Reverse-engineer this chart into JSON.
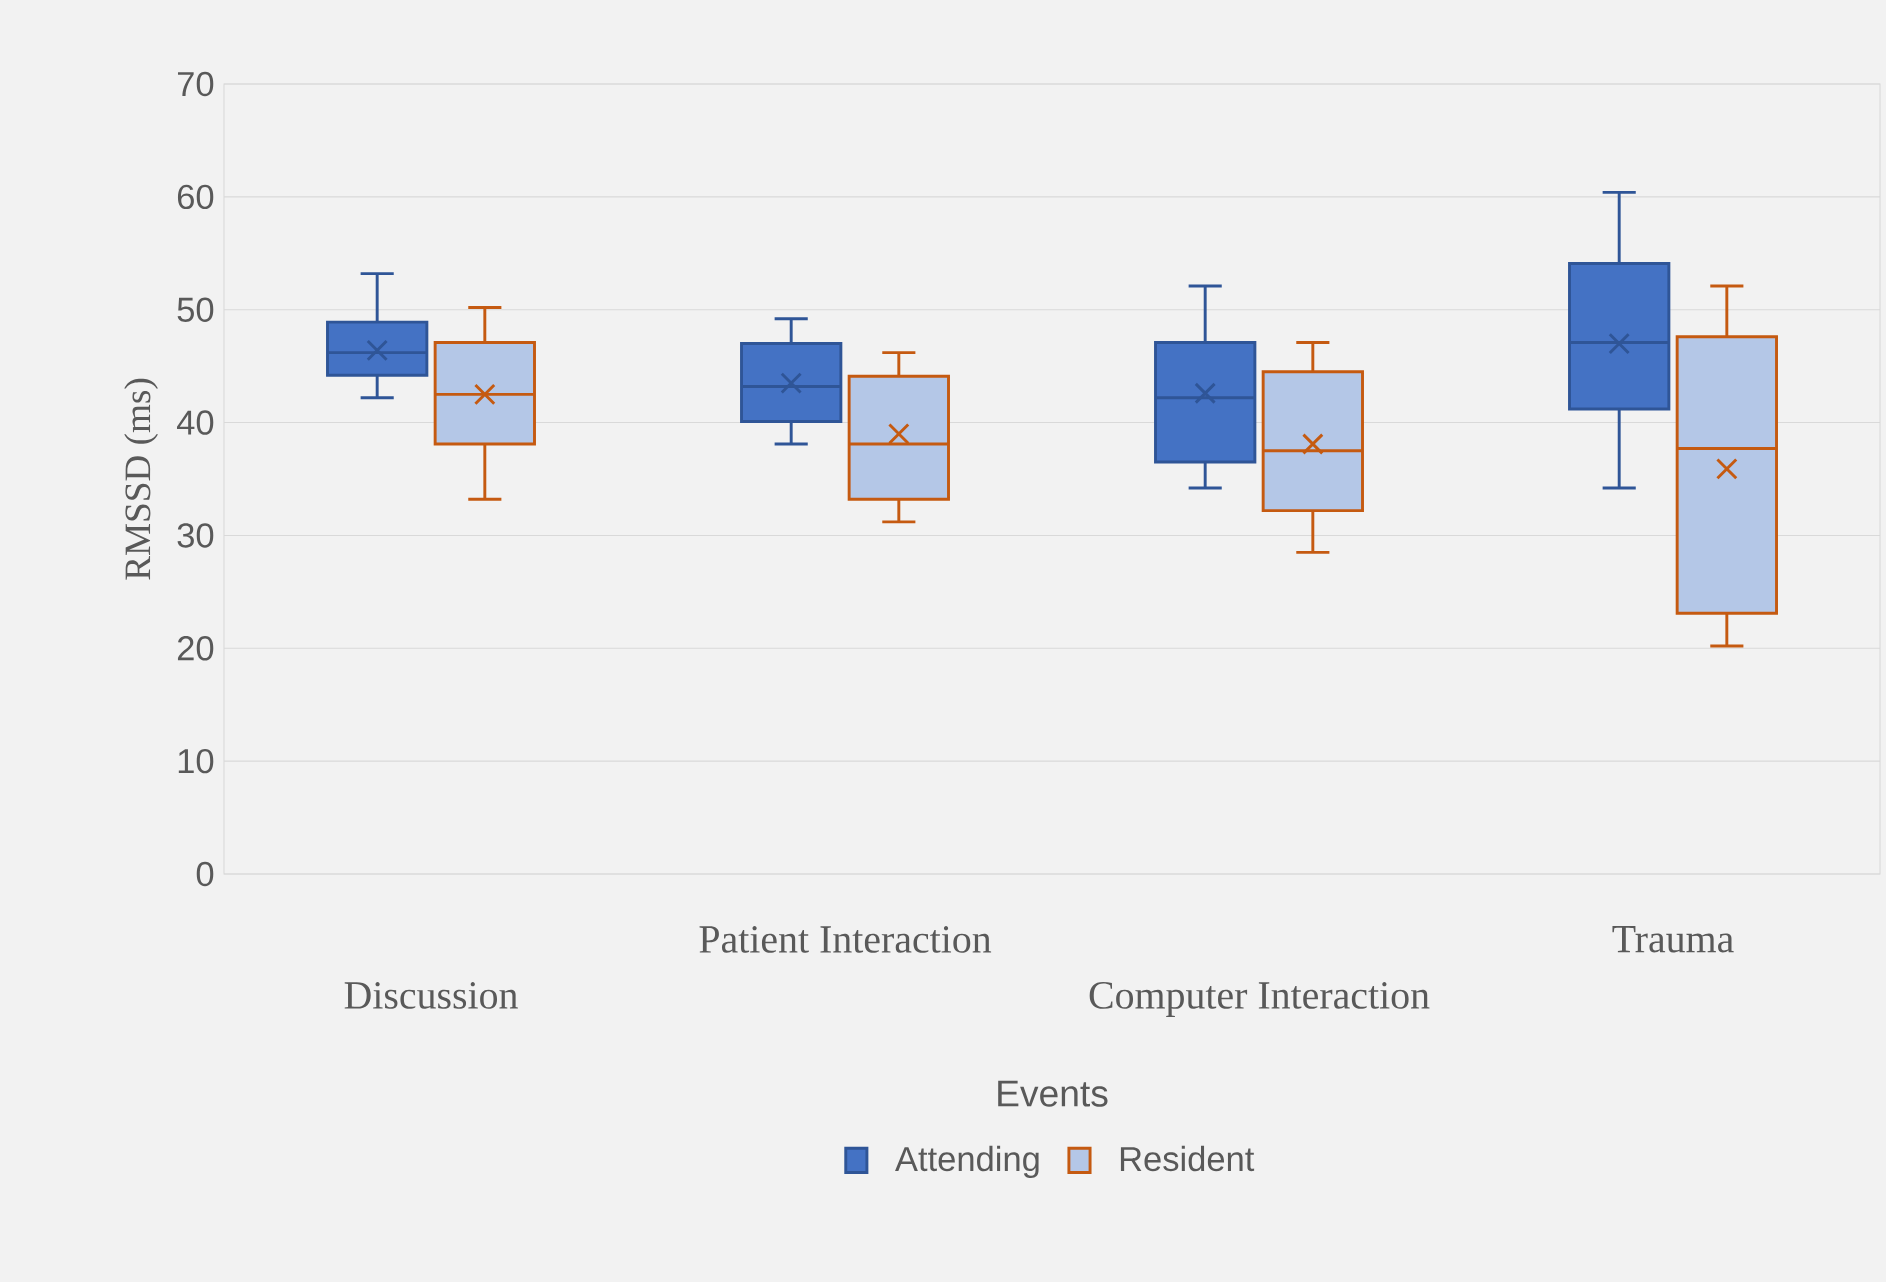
{
  "chart_data": {
    "type": "box",
    "xlabel": "Events",
    "ylabel": "RMSSD (ms)",
    "categories": [
      "Discussion",
      "Patient Interaction",
      "Computer Interaction",
      "Trauma"
    ],
    "ylim": [
      0,
      70
    ],
    "yticks": [
      0,
      10,
      20,
      30,
      40,
      50,
      60,
      70
    ],
    "grid": "y",
    "legend": "bottom",
    "marker": "cross",
    "series": [
      {
        "name": "Attending",
        "color": "#4472c4",
        "boxes": [
          {
            "low": 42.2,
            "q1": 44.2,
            "median": 46.2,
            "q3": 48.9,
            "high": 53.2,
            "mean": 46.4
          },
          {
            "low": 38.1,
            "q1": 40.1,
            "median": 43.2,
            "q3": 47.0,
            "high": 49.2,
            "mean": 43.5
          },
          {
            "low": 34.2,
            "q1": 36.5,
            "median": 42.2,
            "q3": 47.1,
            "high": 52.1,
            "mean": 42.6
          },
          {
            "low": 34.2,
            "q1": 41.2,
            "median": 47.1,
            "q3": 54.1,
            "high": 60.4,
            "mean": 47.0
          }
        ]
      },
      {
        "name": "Resident",
        "color": "#b4c7e7",
        "boxes": [
          {
            "low": 33.2,
            "q1": 38.1,
            "median": 42.5,
            "q3": 47.1,
            "high": 50.2,
            "mean": 42.5
          },
          {
            "low": 31.2,
            "q1": 33.2,
            "median": 38.1,
            "q3": 44.1,
            "high": 46.2,
            "mean": 39.0
          },
          {
            "low": 28.5,
            "q1": 32.2,
            "median": 37.5,
            "q3": 44.5,
            "high": 47.1,
            "mean": 38.1
          },
          {
            "low": 20.2,
            "q1": 23.1,
            "median": 37.7,
            "q3": 47.6,
            "high": 52.1,
            "mean": 35.9
          }
        ]
      }
    ]
  }
}
